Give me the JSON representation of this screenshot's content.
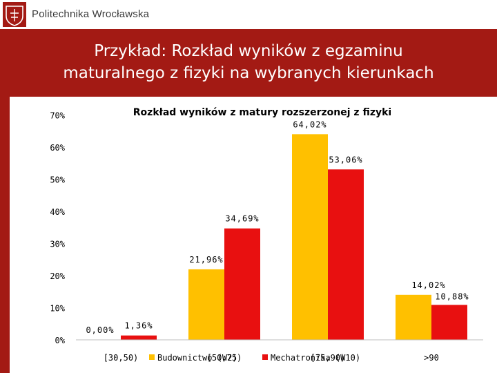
{
  "header": {
    "brand": "Politechnika Wrocławska",
    "logo_icon": "university-emblem-icon",
    "title_line1": "Przykład: Rozkład wyników z egzaminu",
    "title_line2": "maturalnego z fizyki na wybranych kierunkach"
  },
  "colors": {
    "brand_red": "#a31a14",
    "series_1": "#ffc000",
    "series_2": "#e81010"
  },
  "chart_data": {
    "type": "bar",
    "title": "Rozkład wyników z matury rozszerzonej z fizyki",
    "categories": [
      "[30,50)",
      "[50,75)",
      "[75,90)",
      ">90"
    ],
    "series": [
      {
        "name": "Budownictwo (W2)",
        "values": [
          0.0,
          21.96,
          64.02,
          14.02
        ],
        "labels": [
          "0,00%",
          "21,96%",
          "64,02%",
          "14,02%"
        ]
      },
      {
        "name": "Mechatronika (W10)",
        "values": [
          1.36,
          34.69,
          53.06,
          10.88
        ],
        "labels": [
          "1,36%",
          "34,69%",
          "53,06%",
          "10,88%"
        ]
      }
    ],
    "y_ticks": [
      "0%",
      "10%",
      "20%",
      "30%",
      "40%",
      "50%",
      "60%",
      "70%"
    ],
    "ylim": [
      0,
      70
    ],
    "xlabel": "",
    "ylabel": "",
    "legend_position": "bottom",
    "grid": false
  }
}
